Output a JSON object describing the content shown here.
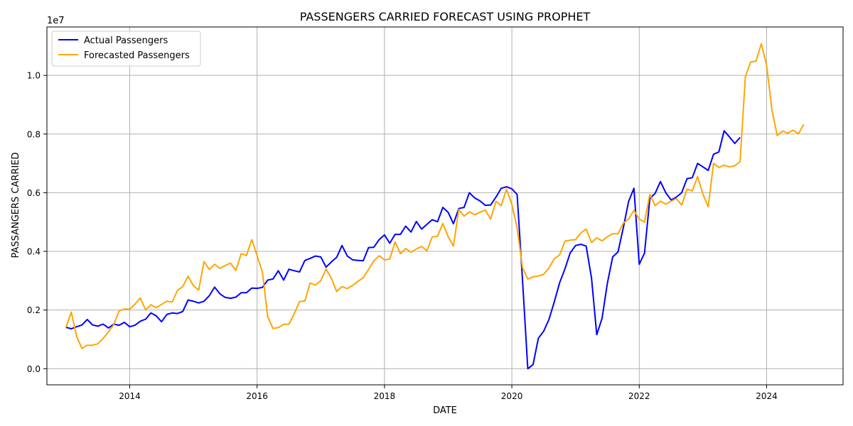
{
  "chart_data": {
    "type": "line",
    "title": "PASSENGERS CARRIED FORECAST USING PROPHET",
    "xlabel": "DATE",
    "ylabel": "PASSANGERS CARRIED",
    "y_offset_label": "1e7",
    "x_ticks": [
      "2014",
      "2016",
      "2018",
      "2020",
      "2022",
      "2024"
    ],
    "x_tick_values": [
      2014,
      2016,
      2018,
      2020,
      2022,
      2024
    ],
    "y_ticks": [
      "0.0",
      "0.2",
      "0.4",
      "0.6",
      "0.8",
      "1.0"
    ],
    "y_tick_values": [
      0.0,
      0.2,
      0.4,
      0.6,
      0.8,
      1.0
    ],
    "xlim": [
      2012.7,
      2025.2
    ],
    "ylim": [
      -0.055,
      1.165
    ],
    "grid": true,
    "legend_position": "top-left",
    "series": [
      {
        "name": "Actual Passengers",
        "color": "#0000ff",
        "x": [
          2013.0,
          2013.083,
          2013.167,
          2013.25,
          2013.333,
          2013.417,
          2013.5,
          2013.583,
          2013.667,
          2013.75,
          2013.833,
          2013.917,
          2014.0,
          2014.083,
          2014.167,
          2014.25,
          2014.333,
          2014.417,
          2014.5,
          2014.583,
          2014.667,
          2014.75,
          2014.833,
          2014.917,
          2015.0,
          2015.083,
          2015.167,
          2015.25,
          2015.333,
          2015.417,
          2015.5,
          2015.583,
          2015.667,
          2015.75,
          2015.833,
          2015.917,
          2016.0,
          2016.083,
          2016.167,
          2016.25,
          2016.333,
          2016.417,
          2016.5,
          2016.583,
          2016.667,
          2016.75,
          2016.833,
          2016.917,
          2017.0,
          2017.083,
          2017.167,
          2017.25,
          2017.333,
          2017.417,
          2017.5,
          2017.583,
          2017.667,
          2017.75,
          2017.833,
          2017.917,
          2018.0,
          2018.083,
          2018.167,
          2018.25,
          2018.333,
          2018.417,
          2018.5,
          2018.583,
          2018.667,
          2018.75,
          2018.833,
          2018.917,
          2019.0,
          2019.083,
          2019.167,
          2019.25,
          2019.333,
          2019.417,
          2019.5,
          2019.583,
          2019.667,
          2019.75,
          2019.833,
          2019.917,
          2020.0,
          2020.083,
          2020.167,
          2020.25,
          2020.333,
          2020.417,
          2020.5,
          2020.583,
          2020.667,
          2020.75,
          2020.833,
          2020.917,
          2021.0,
          2021.083,
          2021.167,
          2021.25,
          2021.333,
          2021.417,
          2021.5,
          2021.583,
          2021.667,
          2021.75,
          2021.833,
          2021.917,
          2022.0,
          2022.083,
          2022.167,
          2022.25,
          2022.333,
          2022.417,
          2022.5,
          2022.583,
          2022.667,
          2022.75,
          2022.833,
          2022.917,
          2023.0,
          2023.083,
          2023.167,
          2023.25,
          2023.333,
          2023.417,
          2023.5,
          2023.583
        ],
        "values": [
          0.141,
          0.136,
          0.143,
          0.149,
          0.168,
          0.149,
          0.145,
          0.152,
          0.139,
          0.152,
          0.148,
          0.158,
          0.143,
          0.148,
          0.162,
          0.169,
          0.19,
          0.18,
          0.16,
          0.185,
          0.19,
          0.188,
          0.195,
          0.234,
          0.23,
          0.224,
          0.23,
          0.249,
          0.278,
          0.255,
          0.243,
          0.24,
          0.244,
          0.259,
          0.259,
          0.275,
          0.274,
          0.277,
          0.302,
          0.306,
          0.334,
          0.302,
          0.339,
          0.334,
          0.33,
          0.369,
          0.376,
          0.384,
          0.381,
          0.346,
          0.364,
          0.38,
          0.42,
          0.384,
          0.371,
          0.369,
          0.368,
          0.413,
          0.414,
          0.44,
          0.456,
          0.428,
          0.458,
          0.458,
          0.486,
          0.466,
          0.502,
          0.476,
          0.492,
          0.508,
          0.501,
          0.55,
          0.533,
          0.494,
          0.546,
          0.55,
          0.6,
          0.582,
          0.572,
          0.557,
          0.558,
          0.585,
          0.615,
          0.62,
          0.613,
          0.594,
          0.305,
          0.0,
          0.014,
          0.104,
          0.128,
          0.168,
          0.228,
          0.293,
          0.34,
          0.395,
          0.42,
          0.424,
          0.418,
          0.31,
          0.116,
          0.172,
          0.292,
          0.381,
          0.398,
          0.481,
          0.57,
          0.615,
          0.356,
          0.394,
          0.58,
          0.598,
          0.638,
          0.6,
          0.575,
          0.585,
          0.6,
          0.648,
          0.651,
          0.7,
          0.688,
          0.676,
          0.731,
          0.739,
          0.811,
          0.79,
          0.768,
          0.788
        ]
      },
      {
        "name": "Forecasted Passengers",
        "color": "#ffa500",
        "x": [
          2013.0,
          2013.083,
          2013.167,
          2013.25,
          2013.333,
          2013.417,
          2013.5,
          2013.583,
          2013.667,
          2013.75,
          2013.833,
          2013.917,
          2014.0,
          2014.083,
          2014.167,
          2014.25,
          2014.333,
          2014.417,
          2014.5,
          2014.583,
          2014.667,
          2014.75,
          2014.833,
          2014.917,
          2015.0,
          2015.083,
          2015.167,
          2015.25,
          2015.333,
          2015.417,
          2015.5,
          2015.583,
          2015.667,
          2015.75,
          2015.833,
          2015.917,
          2016.0,
          2016.083,
          2016.167,
          2016.25,
          2016.333,
          2016.417,
          2016.5,
          2016.583,
          2016.667,
          2016.75,
          2016.833,
          2016.917,
          2017.0,
          2017.083,
          2017.167,
          2017.25,
          2017.333,
          2017.417,
          2017.5,
          2017.583,
          2017.667,
          2017.75,
          2017.833,
          2017.917,
          2018.0,
          2018.083,
          2018.167,
          2018.25,
          2018.333,
          2018.417,
          2018.5,
          2018.583,
          2018.667,
          2018.75,
          2018.833,
          2018.917,
          2019.0,
          2019.083,
          2019.167,
          2019.25,
          2019.333,
          2019.417,
          2019.5,
          2019.583,
          2019.667,
          2019.75,
          2019.833,
          2019.917,
          2020.0,
          2020.083,
          2020.167,
          2020.25,
          2020.333,
          2020.417,
          2020.5,
          2020.583,
          2020.667,
          2020.75,
          2020.833,
          2020.917,
          2021.0,
          2021.083,
          2021.167,
          2021.25,
          2021.333,
          2021.417,
          2021.5,
          2021.583,
          2021.667,
          2021.75,
          2021.833,
          2021.917,
          2022.0,
          2022.083,
          2022.167,
          2022.25,
          2022.333,
          2022.417,
          2022.5,
          2022.583,
          2022.667,
          2022.75,
          2022.833,
          2022.917,
          2023.0,
          2023.083,
          2023.167,
          2023.25,
          2023.333,
          2023.417,
          2023.5,
          2023.583,
          2023.667,
          2023.75,
          2023.833,
          2023.917,
          2024.0,
          2024.083,
          2024.167,
          2024.25,
          2024.333,
          2024.417,
          2024.5,
          2024.583
        ],
        "values": [
          0.142,
          0.193,
          0.11,
          0.069,
          0.08,
          0.08,
          0.085,
          0.103,
          0.126,
          0.15,
          0.197,
          0.203,
          0.203,
          0.22,
          0.241,
          0.2,
          0.218,
          0.208,
          0.219,
          0.23,
          0.227,
          0.267,
          0.28,
          0.315,
          0.283,
          0.268,
          0.365,
          0.338,
          0.356,
          0.342,
          0.352,
          0.36,
          0.335,
          0.392,
          0.386,
          0.44,
          0.385,
          0.33,
          0.177,
          0.137,
          0.14,
          0.151,
          0.152,
          0.187,
          0.229,
          0.231,
          0.292,
          0.285,
          0.3,
          0.34,
          0.308,
          0.263,
          0.28,
          0.273,
          0.284,
          0.298,
          0.31,
          0.338,
          0.368,
          0.385,
          0.371,
          0.374,
          0.432,
          0.392,
          0.41,
          0.397,
          0.408,
          0.417,
          0.402,
          0.449,
          0.452,
          0.495,
          0.45,
          0.418,
          0.543,
          0.52,
          0.535,
          0.525,
          0.533,
          0.541,
          0.51,
          0.57,
          0.556,
          0.612,
          0.56,
          0.48,
          0.345,
          0.306,
          0.313,
          0.316,
          0.322,
          0.344,
          0.375,
          0.388,
          0.435,
          0.438,
          0.44,
          0.463,
          0.476,
          0.43,
          0.446,
          0.436,
          0.45,
          0.46,
          0.46,
          0.496,
          0.51,
          0.54,
          0.51,
          0.5,
          0.594,
          0.556,
          0.571,
          0.561,
          0.571,
          0.58,
          0.558,
          0.612,
          0.606,
          0.655,
          0.595,
          0.552,
          0.7,
          0.686,
          0.694,
          0.688,
          0.692,
          0.705,
          0.996,
          1.046,
          1.048,
          1.108,
          1.034,
          0.883,
          0.795,
          0.81,
          0.803,
          0.813,
          0.801,
          0.833
        ]
      }
    ]
  }
}
